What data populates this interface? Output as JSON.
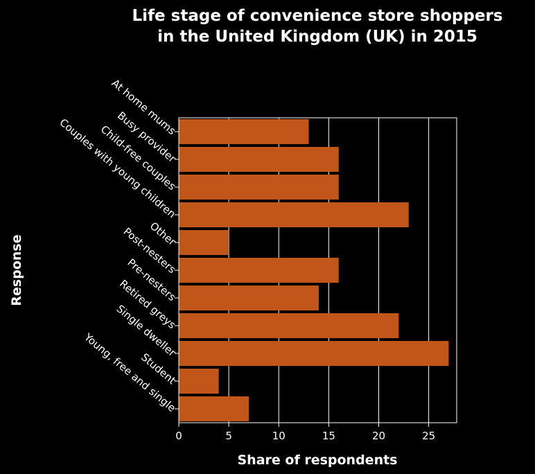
{
  "colors": {
    "background": "#000000",
    "bar": "#c1561a",
    "grid": "#ffffff",
    "text": "#ffffff"
  },
  "chart_data": {
    "type": "bar",
    "orientation": "horizontal",
    "title": [
      "Life stage of convenience store shoppers",
      "in the United Kingdom (UK) in 2015"
    ],
    "xlabel": "Share of respondents",
    "ylabel": "Response",
    "xlim": [
      0,
      27.8
    ],
    "xticks": [
      0,
      5,
      10,
      15,
      20,
      25
    ],
    "grid": true,
    "categories": [
      "At home mums",
      "Busy provider",
      "Child-free couples",
      "Couples with young children",
      "Other",
      "Post-nesters",
      "Pre-nesters",
      "Retired greys",
      "Single dweller",
      "Student",
      "Young, free and single"
    ],
    "values": [
      13,
      16,
      16,
      23,
      5,
      16,
      14,
      22,
      27,
      4,
      7
    ]
  }
}
